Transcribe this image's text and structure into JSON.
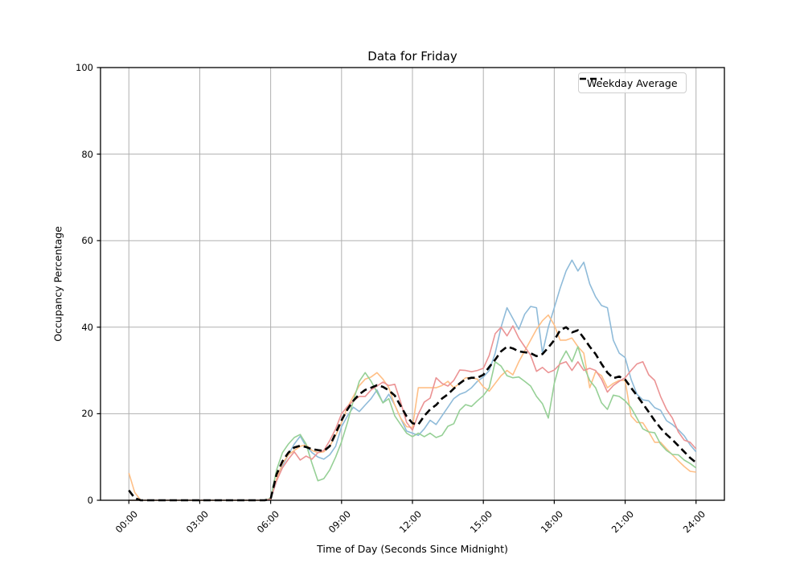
{
  "figure": {
    "title": "Data for Friday",
    "xlabel": "Time of Day (Seconds Since Midnight)",
    "ylabel": "Occupancy Percentage",
    "background_color": "#ffffff"
  },
  "legend": {
    "position": "upper right",
    "entries": [
      {
        "label": "Weekday Average",
        "color": "#000000",
        "line_style": "dashed"
      }
    ]
  },
  "chart_data": {
    "type": "line",
    "title": "Data for Friday",
    "xlabel": "Time of Day (Seconds Since Midnight)",
    "ylabel": "Occupancy Percentage",
    "x_unit": "hours_since_midnight",
    "x_start": 0,
    "x_step": 0.25,
    "xlim": [
      -1.2,
      25.2
    ],
    "ylim": [
      0,
      100
    ],
    "grid": true,
    "grid_color": "#b0b0b0",
    "spine_color": "#000000",
    "xtick_hours": [
      0,
      3,
      6,
      9,
      12,
      15,
      18,
      21,
      24
    ],
    "xtick_labels": [
      "00:00",
      "03:00",
      "06:00",
      "09:00",
      "12:00",
      "15:00",
      "18:00",
      "21:00",
      "24:00"
    ],
    "yticks": [
      0,
      20,
      40,
      60,
      80,
      100
    ],
    "ytick_labels": [
      "0",
      "20",
      "40",
      "60",
      "80",
      "100"
    ],
    "series": [
      {
        "name": "weekday-series-blue",
        "in_legend": false,
        "color": "#8fbbd9",
        "width": 1.6,
        "dash": null,
        "values": [
          0,
          0,
          0,
          0,
          0,
          0,
          0,
          0,
          0,
          0,
          0,
          0,
          0,
          0,
          0,
          0,
          0,
          0,
          0,
          0,
          0,
          0,
          0,
          0,
          0.2,
          4.5,
          8,
          10.5,
          13,
          14.8,
          12.5,
          11,
          10,
          9.5,
          10.5,
          12.5,
          17,
          19.5,
          21.5,
          20.5,
          22,
          23.5,
          25.5,
          22.5,
          24.5,
          22,
          19,
          16,
          15.5,
          15,
          16.5,
          18.5,
          17.5,
          19.5,
          21.5,
          23.5,
          24.5,
          25,
          26,
          27.5,
          28.5,
          30,
          34,
          40,
          44.5,
          42,
          39.5,
          43,
          44.8,
          44.5,
          34,
          40,
          44.5,
          49,
          53,
          55.5,
          53,
          55,
          50,
          47,
          45,
          44.5,
          37,
          34,
          33,
          28,
          24.5,
          23.2,
          23,
          21.4,
          20.8,
          18.4,
          17.5,
          16.3,
          14.9,
          12.8,
          11.2
        ]
      },
      {
        "name": "weekday-series-orange",
        "in_legend": false,
        "color": "#ffbf86",
        "width": 1.6,
        "dash": null,
        "values": [
          6.3,
          1.8,
          0,
          0,
          0,
          0,
          0,
          0,
          0,
          0,
          0,
          0,
          0,
          0,
          0,
          0,
          0,
          0,
          0,
          0,
          0,
          0,
          0,
          0,
          0.2,
          5,
          8.5,
          10.5,
          11.5,
          12.5,
          12.8,
          11.5,
          11,
          11.2,
          12.5,
          15,
          18,
          21.5,
          24,
          26.5,
          28,
          28.5,
          29.5,
          28,
          26,
          22,
          19,
          17,
          16.8,
          26,
          26,
          26,
          26,
          26.5,
          27.5,
          26,
          27,
          28.3,
          28.3,
          28,
          26.2,
          25.2,
          27,
          28.8,
          30,
          29,
          32,
          34.5,
          37,
          39.5,
          41.5,
          42.8,
          40.5,
          37,
          37,
          37.5,
          35.5,
          34,
          26,
          29.7,
          28.8,
          26,
          27,
          27.7,
          27.7,
          19.5,
          18,
          17.9,
          15.8,
          13.4,
          13.4,
          11.9,
          10.5,
          9.1,
          7.8,
          6.7,
          6.5
        ]
      },
      {
        "name": "weekday-series-green",
        "in_legend": false,
        "color": "#96d096",
        "width": 1.6,
        "dash": null,
        "values": [
          0,
          0,
          0,
          0,
          0,
          0,
          0,
          0,
          0,
          0,
          0,
          0,
          0,
          0,
          0,
          0,
          0,
          0,
          0,
          0,
          0,
          0,
          0,
          0,
          0.5,
          7,
          11,
          13,
          14.5,
          15.2,
          13,
          8.5,
          4.5,
          5,
          7,
          10,
          13.5,
          18,
          23,
          27.5,
          29.5,
          27.5,
          25,
          22.5,
          23.5,
          19.5,
          17.5,
          15.5,
          14.7,
          15.5,
          14.7,
          15.5,
          14.5,
          15,
          17.1,
          17.7,
          20.8,
          22.1,
          21.7,
          23,
          24.2,
          26,
          32,
          31,
          28.8,
          28.3,
          28.5,
          27.5,
          26.4,
          24,
          22.3,
          19,
          27,
          32,
          34.5,
          32,
          35.5,
          31,
          27.7,
          26,
          22.5,
          21,
          24.3,
          24,
          23,
          21.4,
          19,
          16.5,
          15.8,
          15.6,
          13,
          11.5,
          10.6,
          10.5,
          9.3,
          8.5,
          7.5
        ]
      },
      {
        "name": "weekday-series-red",
        "in_legend": false,
        "color": "#eb9394",
        "width": 1.6,
        "dash": null,
        "values": [
          0,
          0,
          0,
          0,
          0,
          0,
          0,
          0,
          0,
          0,
          0,
          0,
          0,
          0,
          0,
          0,
          0,
          0,
          0,
          0,
          0,
          0,
          0,
          0,
          0.3,
          4.5,
          7.5,
          9.5,
          11.2,
          9.3,
          10.2,
          9.5,
          11,
          11.5,
          13.8,
          16.5,
          20,
          21.7,
          23,
          24,
          24,
          25.5,
          26.4,
          27.3,
          26.5,
          26.8,
          22.7,
          18,
          16.2,
          19.9,
          22.7,
          23.6,
          28.3,
          27,
          26.4,
          27.7,
          30.1,
          30,
          29.7,
          30,
          30.5,
          33.5,
          38.5,
          40,
          38,
          40.3,
          37.5,
          35.5,
          33.5,
          29.8,
          30.7,
          29.5,
          30.1,
          31.5,
          32,
          30,
          32,
          30,
          30.5,
          30,
          28,
          25,
          26.5,
          27.5,
          28.3,
          30,
          31.5,
          32,
          29,
          27.7,
          24,
          21,
          19,
          15.8,
          13.9,
          13.4,
          11.9
        ]
      },
      {
        "name": "weekday-average",
        "in_legend": true,
        "legend_label": "Weekday Average",
        "color": "#000000",
        "width": 2.6,
        "dash": "9 5",
        "values": [
          2.3,
          0.5,
          0,
          0,
          0,
          0,
          0,
          0,
          0,
          0,
          0,
          0,
          0,
          0,
          0,
          0,
          0,
          0,
          0,
          0,
          0,
          0,
          0,
          0,
          0.3,
          6,
          9,
          11,
          12.2,
          12.6,
          12.3,
          11.8,
          11.6,
          11.4,
          12.5,
          15.5,
          18.5,
          21,
          23,
          24.5,
          25.5,
          26,
          26.6,
          26.2,
          25.4,
          24.2,
          21.8,
          19.4,
          17.8,
          17.5,
          19.5,
          21,
          22,
          23.5,
          24.5,
          25.8,
          27,
          28,
          28.3,
          28.3,
          29,
          30.8,
          32.5,
          34.4,
          35.5,
          35.1,
          34.4,
          34.2,
          34,
          33.3,
          33.8,
          35.3,
          37,
          39.3,
          40,
          38.8,
          39.3,
          37.5,
          35.5,
          33.8,
          31.5,
          29.5,
          28.2,
          28.6,
          27.9,
          26,
          24.2,
          22.3,
          20.4,
          18.4,
          16.7,
          15.2,
          14,
          12.6,
          11.2,
          9.8,
          8.7
        ]
      }
    ]
  }
}
